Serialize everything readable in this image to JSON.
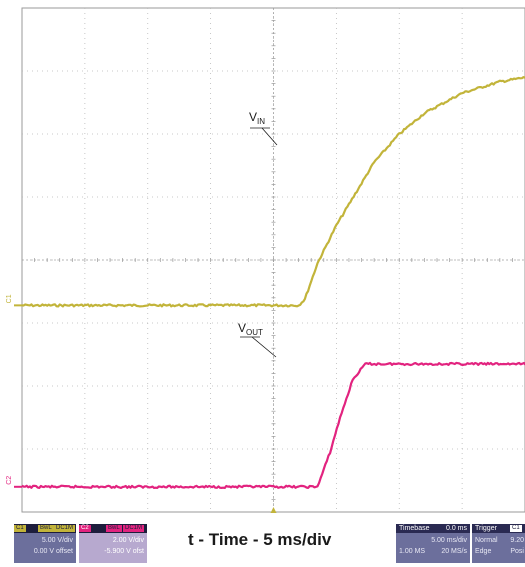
{
  "chart_data": {
    "type": "line",
    "xlabel": "t - Time - 5 ms/div",
    "grid": true,
    "x_unit": "ms",
    "xlim": [
      0,
      49.4
    ],
    "divisions": {
      "x": 10,
      "y": 8
    },
    "series": [
      {
        "name": "V_IN",
        "channel": "C1",
        "color": "#c2b43a",
        "x": [
          0,
          22.0,
          22.5,
          23.5,
          25,
          26.5,
          28,
          30,
          32,
          35,
          38,
          41,
          44,
          47,
          49.4
        ],
        "y_div": [
          4.72,
          4.72,
          4.62,
          4.05,
          3.45,
          2.95,
          2.45,
          2.0,
          1.67,
          1.35,
          1.17,
          1.07,
          1.03,
          1.01,
          1.0
        ]
      },
      {
        "name": "V_OUT",
        "channel": "C2",
        "color": "#e2237f",
        "x": [
          0,
          23.5,
          24.5,
          25.3,
          26.3,
          27.3,
          49.4
        ],
        "y_div": [
          7.6,
          7.6,
          7.05,
          6.5,
          5.9,
          5.65,
          5.65
        ]
      }
    ],
    "annotations": [
      {
        "label_main": "V",
        "label_sub": "IN",
        "series": "V_IN"
      },
      {
        "label_main": "V",
        "label_sub": "OUT",
        "series": "V_OUT"
      }
    ],
    "channel_markers": [
      "C1",
      "C2"
    ]
  },
  "panel_c1": {
    "name": "C1",
    "tag_bw": "BwL",
    "tag_mode": "DC1M",
    "scale": "5.00 V/div",
    "offset": "0.00 V offset"
  },
  "panel_c2": {
    "name": "C2",
    "tag_bw": "BwL",
    "tag_mode": "DC1M",
    "scale": "2.00 V/div",
    "offset": "-5.900 V ofst"
  },
  "panel_timebase": {
    "title": "Timebase",
    "delay": "0.0 ms",
    "scale": "5.00 ms/div",
    "points": "1.00 MS",
    "rate": "20 MS/s"
  },
  "panel_trigger": {
    "title": "Trigger",
    "channel": "C1",
    "tag_mode": "DC",
    "mode": "Normal",
    "level": "9.20",
    "type": "Edge",
    "slope": "Posi"
  }
}
